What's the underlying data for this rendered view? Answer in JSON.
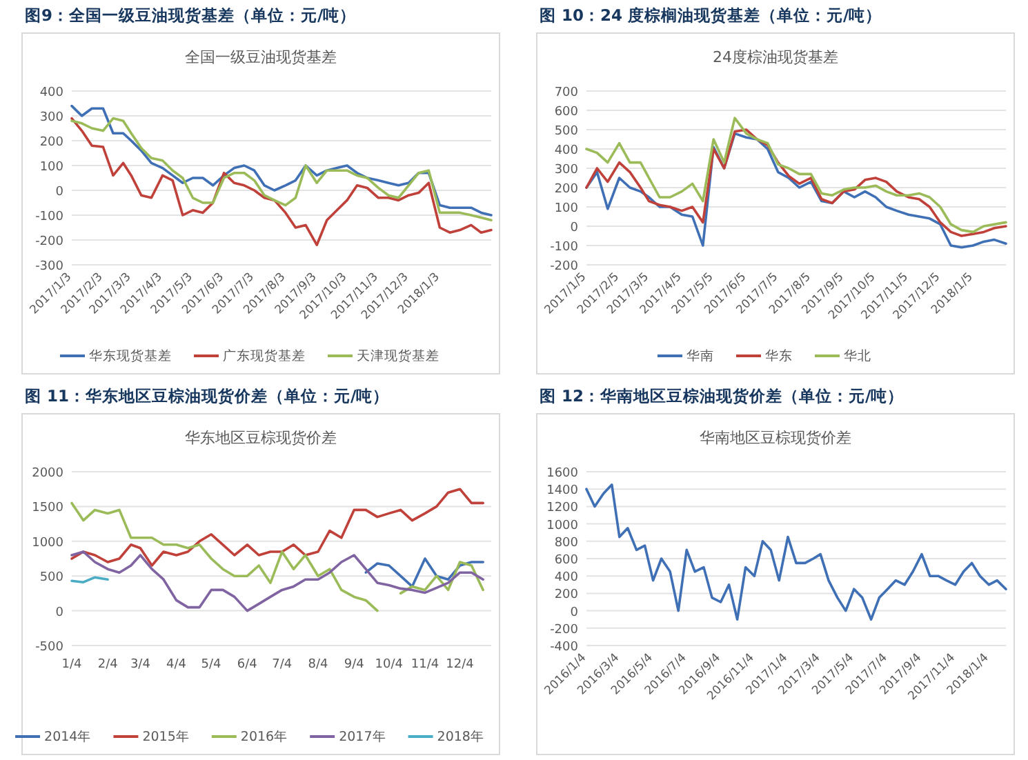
{
  "chart_data": [
    {
      "type": "line",
      "title": "图9：全国一级豆油现货基差（单位：元/吨）",
      "subtitle": "全国一级豆油现货基差",
      "grid": "y",
      "legend": "bottom",
      "x": [
        "2017-01-03",
        "2017-01-13",
        "2017-01-23",
        "2017-02-03",
        "2017-02-13",
        "2017-02-23",
        "2017-03-03",
        "2017-03-13",
        "2017-03-23",
        "2017-04-03",
        "2017-04-13",
        "2017-04-23",
        "2017-05-03",
        "2017-05-13",
        "2017-05-23",
        "2017-06-03",
        "2017-06-13",
        "2017-06-23",
        "2017-07-03",
        "2017-07-13",
        "2017-07-23",
        "2017-08-03",
        "2017-08-13",
        "2017-08-23",
        "2017-09-03",
        "2017-09-13",
        "2017-09-23",
        "2017-10-03",
        "2017-10-13",
        "2017-10-23",
        "2017-11-03",
        "2017-11-13",
        "2017-11-23",
        "2017-12-03",
        "2017-12-13",
        "2017-12-23",
        "2018-01-03",
        "2018-01-13",
        "2018-01-23",
        "2018-02-03",
        "2018-02-13",
        "2018-02-23"
      ],
      "xlim": [
        "2017-01-03",
        "2018-02-23"
      ],
      "xticks": [
        {
          "value": "2017-01-03",
          "label": "2017/1/3"
        },
        {
          "value": "2017-02-03",
          "label": "2017/2/3"
        },
        {
          "value": "2017-03-03",
          "label": "2017/3/3"
        },
        {
          "value": "2017-04-03",
          "label": "2017/4/3"
        },
        {
          "value": "2017-05-03",
          "label": "2017/5/3"
        },
        {
          "value": "2017-06-03",
          "label": "2017/6/3"
        },
        {
          "value": "2017-07-03",
          "label": "2017/7/3"
        },
        {
          "value": "2017-08-03",
          "label": "2017/8/3"
        },
        {
          "value": "2017-09-03",
          "label": "2017/9/3"
        },
        {
          "value": "2017-10-03",
          "label": "2017/10/3"
        },
        {
          "value": "2017-11-03",
          "label": "2017/11/3"
        },
        {
          "value": "2017-12-03",
          "label": "2017/12/3"
        },
        {
          "value": "2018-01-03",
          "label": "2018/1/3"
        }
      ],
      "ylim": [
        -300,
        400
      ],
      "yticks": [
        -300,
        -200,
        -100,
        0,
        100,
        200,
        300,
        400
      ],
      "series": [
        {
          "name": "华东现货基差",
          "color": "#3f6fb5",
          "values": [
            340,
            300,
            330,
            330,
            230,
            230,
            200,
            160,
            110,
            90,
            60,
            30,
            50,
            50,
            20,
            60,
            90,
            100,
            80,
            20,
            0,
            20,
            40,
            100,
            60,
            80,
            90,
            100,
            70,
            50,
            40,
            30,
            20,
            30,
            70,
            70,
            -60,
            -70,
            -70,
            -70,
            -90,
            -100
          ]
        },
        {
          "name": "广东现货基差",
          "color": "#c0403a",
          "values": [
            290,
            240,
            180,
            175,
            60,
            110,
            60,
            -20,
            -30,
            60,
            40,
            -100,
            -80,
            -90,
            -50,
            70,
            30,
            20,
            0,
            -30,
            -40,
            -90,
            -150,
            -140,
            -220,
            -120,
            -80,
            -40,
            20,
            10,
            -30,
            -30,
            -40,
            -20,
            -10,
            30,
            -150,
            -170,
            -160,
            -140,
            -170,
            -160
          ]
        },
        {
          "name": "天津现货基差",
          "color": "#9bbb59",
          "values": [
            280,
            270,
            250,
            240,
            290,
            280,
            230,
            170,
            130,
            120,
            80,
            50,
            -30,
            -50,
            -50,
            50,
            70,
            70,
            40,
            -20,
            -40,
            -60,
            -30,
            100,
            30,
            80,
            80,
            80,
            60,
            50,
            10,
            -20,
            -30,
            20,
            70,
            80,
            -90,
            -90,
            -90,
            -100,
            -110,
            -120
          ]
        }
      ]
    },
    {
      "type": "line",
      "title": "图 10：24 度棕榈油现货基差（单位：元/吨）",
      "subtitle": "24度棕油现货基差",
      "grid": "y",
      "legend": "bottom",
      "x": [
        "2017-01-05",
        "2017-01-15",
        "2017-01-25",
        "2017-02-05",
        "2017-02-15",
        "2017-02-25",
        "2017-03-05",
        "2017-03-15",
        "2017-03-25",
        "2017-04-05",
        "2017-04-15",
        "2017-04-25",
        "2017-05-05",
        "2017-05-15",
        "2017-05-25",
        "2017-06-05",
        "2017-06-15",
        "2017-06-25",
        "2017-07-05",
        "2017-07-15",
        "2017-07-25",
        "2017-08-05",
        "2017-08-15",
        "2017-08-25",
        "2017-09-05",
        "2017-09-15",
        "2017-09-25",
        "2017-10-05",
        "2017-10-15",
        "2017-10-25",
        "2017-11-05",
        "2017-11-15",
        "2017-11-25",
        "2017-12-05",
        "2017-12-15",
        "2017-12-25",
        "2018-01-05",
        "2018-01-15",
        "2018-01-25",
        "2018-02-05"
      ],
      "xlim": [
        "2017-01-05",
        "2018-02-05"
      ],
      "xticks": [
        {
          "value": "2017-01-05",
          "label": "2017/1/5"
        },
        {
          "value": "2017-02-05",
          "label": "2017/2/5"
        },
        {
          "value": "2017-03-05",
          "label": "2017/3/5"
        },
        {
          "value": "2017-04-05",
          "label": "2017/4/5"
        },
        {
          "value": "2017-05-05",
          "label": "2017/5/5"
        },
        {
          "value": "2017-06-05",
          "label": "2017/6/5"
        },
        {
          "value": "2017-07-05",
          "label": "2017/7/5"
        },
        {
          "value": "2017-08-05",
          "label": "2017/8/5"
        },
        {
          "value": "2017-09-05",
          "label": "2017/9/5"
        },
        {
          "value": "2017-10-05",
          "label": "2017/10/5"
        },
        {
          "value": "2017-11-05",
          "label": "2017/11/5"
        },
        {
          "value": "2017-12-05",
          "label": "2017/12/5"
        },
        {
          "value": "2018-01-05",
          "label": "2018/1/5"
        }
      ],
      "ylim": [
        -200,
        700
      ],
      "yticks": [
        -200,
        -100,
        0,
        100,
        200,
        300,
        400,
        500,
        600,
        700
      ],
      "series": [
        {
          "name": "华南",
          "color": "#3f6fb5",
          "values": [
            200,
            280,
            90,
            250,
            200,
            180,
            150,
            100,
            100,
            60,
            50,
            -100,
            410,
            300,
            480,
            460,
            450,
            400,
            280,
            250,
            200,
            230,
            130,
            120,
            180,
            150,
            180,
            150,
            100,
            80,
            60,
            50,
            40,
            10,
            -100,
            -110,
            -100,
            -80,
            -70,
            -90
          ]
        },
        {
          "name": "华东",
          "color": "#c0403a",
          "values": [
            200,
            300,
            230,
            330,
            280,
            200,
            130,
            110,
            100,
            80,
            100,
            20,
            400,
            300,
            490,
            500,
            450,
            420,
            330,
            260,
            220,
            250,
            140,
            120,
            180,
            190,
            240,
            250,
            230,
            180,
            150,
            140,
            100,
            20,
            -30,
            -50,
            -40,
            -30,
            -10,
            0
          ]
        },
        {
          "name": "华北",
          "color": "#9bbb59",
          "values": [
            400,
            380,
            330,
            430,
            330,
            330,
            250,
            150,
            150,
            180,
            220,
            130,
            450,
            330,
            560,
            480,
            450,
            430,
            320,
            300,
            270,
            270,
            170,
            160,
            190,
            200,
            200,
            210,
            180,
            160,
            160,
            170,
            150,
            100,
            10,
            -20,
            -30,
            0,
            10,
            20
          ]
        }
      ]
    },
    {
      "type": "line",
      "title": "图 11：华东地区豆棕油现货价差（单位：元/吨）",
      "subtitle": "华东地区豆棕现货价差",
      "grid": "y",
      "legend": "bottom",
      "x": [
        "--01-04",
        "--01-14",
        "--01-24",
        "--02-04",
        "--02-14",
        "--02-24",
        "--03-04",
        "--03-14",
        "--03-24",
        "--04-04",
        "--04-14",
        "--04-24",
        "--05-04",
        "--05-14",
        "--05-24",
        "--06-04",
        "--06-14",
        "--06-24",
        "--07-04",
        "--07-14",
        "--07-24",
        "--08-04",
        "--08-14",
        "--08-24",
        "--09-04",
        "--09-14",
        "--09-24",
        "--10-04",
        "--10-14",
        "--10-24",
        "--11-04",
        "--11-14",
        "--11-24",
        "--12-04",
        "--12-14",
        "--12-24"
      ],
      "xlim": [
        "--01-04",
        "--12-31"
      ],
      "xticks": [
        {
          "value": "--01-04",
          "label": "1/4"
        },
        {
          "value": "--02-04",
          "label": "2/4"
        },
        {
          "value": "--03-04",
          "label": "3/4"
        },
        {
          "value": "--04-04",
          "label": "4/4"
        },
        {
          "value": "--05-04",
          "label": "5/4"
        },
        {
          "value": "--06-04",
          "label": "6/4"
        },
        {
          "value": "--07-04",
          "label": "7/4"
        },
        {
          "value": "--08-04",
          "label": "8/4"
        },
        {
          "value": "--09-04",
          "label": "9/4"
        },
        {
          "value": "--10-04",
          "label": "10/4"
        },
        {
          "value": "--11-04",
          "label": "11/4"
        },
        {
          "value": "--12-04",
          "label": "12/4"
        }
      ],
      "ylim": [
        -500,
        2000
      ],
      "yticks": [
        -500,
        0,
        500,
        1000,
        1500,
        2000
      ],
      "series": [
        {
          "name": "2014年",
          "color": "#3f6fb5",
          "values": [
            null,
            null,
            null,
            null,
            null,
            null,
            null,
            null,
            null,
            null,
            null,
            null,
            null,
            null,
            null,
            null,
            null,
            null,
            null,
            null,
            null,
            null,
            null,
            null,
            null,
            550,
            680,
            650,
            500,
            350,
            750,
            500,
            450,
            650,
            700,
            700
          ]
        },
        {
          "name": "2015年",
          "color": "#c0403a",
          "values": [
            750,
            850,
            800,
            700,
            750,
            950,
            900,
            650,
            850,
            800,
            850,
            1000,
            1100,
            950,
            800,
            950,
            800,
            850,
            850,
            950,
            800,
            850,
            1150,
            1050,
            1450,
            1450,
            1350,
            1400,
            1450,
            1300,
            1400,
            1500,
            1700,
            1750,
            1550,
            1550
          ]
        },
        {
          "name": "2016年",
          "color": "#9bbb59",
          "values": [
            1550,
            1300,
            1450,
            1400,
            1450,
            1050,
            1050,
            1050,
            950,
            950,
            900,
            950,
            750,
            600,
            500,
            500,
            650,
            400,
            850,
            600,
            800,
            500,
            600,
            300,
            200,
            150,
            0,
            null,
            250,
            350,
            300,
            500,
            300,
            700,
            650,
            300
          ]
        },
        {
          "name": "2017年",
          "color": "#8064a2",
          "values": [
            800,
            850,
            700,
            600,
            550,
            650,
            800,
            600,
            450,
            150,
            50,
            50,
            300,
            300,
            200,
            0,
            100,
            200,
            300,
            350,
            450,
            450,
            550,
            700,
            800,
            600,
            400,
            370,
            320,
            300,
            260,
            330,
            400,
            550,
            550,
            450
          ]
        },
        {
          "name": "2018年",
          "color": "#4bacc6",
          "values": [
            430,
            410,
            480,
            450,
            null,
            null,
            null,
            null,
            null,
            null,
            null,
            null,
            null,
            null,
            null,
            null,
            null,
            null,
            null,
            null,
            null,
            null,
            null,
            null,
            null,
            null,
            null,
            null,
            null,
            null,
            null,
            null,
            null,
            null,
            null,
            null
          ]
        }
      ]
    },
    {
      "type": "line",
      "title": "图 12：华南地区豆棕油现货价差（单位：元/吨）",
      "subtitle": "华南地区豆棕现货价差",
      "grid": "y",
      "x": [
        "2016-01-04",
        "2016-01-19",
        "2016-02-04",
        "2016-02-19",
        "2016-03-04",
        "2016-03-19",
        "2016-04-04",
        "2016-04-19",
        "2016-05-04",
        "2016-05-19",
        "2016-06-04",
        "2016-06-19",
        "2016-07-04",
        "2016-07-19",
        "2016-08-04",
        "2016-08-19",
        "2016-09-04",
        "2016-09-19",
        "2016-10-04",
        "2016-10-19",
        "2016-11-04",
        "2016-11-19",
        "2016-12-04",
        "2016-12-19",
        "2017-01-04",
        "2017-01-19",
        "2017-02-04",
        "2017-02-19",
        "2017-03-04",
        "2017-03-19",
        "2017-04-04",
        "2017-04-19",
        "2017-05-04",
        "2017-05-19",
        "2017-06-04",
        "2017-06-19",
        "2017-07-04",
        "2017-07-19",
        "2017-08-04",
        "2017-08-19",
        "2017-09-04",
        "2017-09-19",
        "2017-10-04",
        "2017-10-19",
        "2017-11-04",
        "2017-11-19",
        "2017-12-04",
        "2017-12-19",
        "2018-01-04",
        "2018-01-19",
        "2018-02-04"
      ],
      "xlim": [
        "2016-01-04",
        "2018-02-04"
      ],
      "xticks": [
        {
          "value": "2016-01-04",
          "label": "2016/1/4"
        },
        {
          "value": "2016-03-04",
          "label": "2016/3/4"
        },
        {
          "value": "2016-05-04",
          "label": "2016/5/4"
        },
        {
          "value": "2016-07-04",
          "label": "2016/7/4"
        },
        {
          "value": "2016-09-04",
          "label": "2016/9/4"
        },
        {
          "value": "2016-11-04",
          "label": "2016/11/4"
        },
        {
          "value": "2017-01-04",
          "label": "2017/1/4"
        },
        {
          "value": "2017-03-04",
          "label": "2017/3/4"
        },
        {
          "value": "2017-05-04",
          "label": "2017/5/4"
        },
        {
          "value": "2017-07-04",
          "label": "2017/7/4"
        },
        {
          "value": "2017-09-04",
          "label": "2017/9/4"
        },
        {
          "value": "2017-11-04",
          "label": "2017/11/4"
        },
        {
          "value": "2018-01-04",
          "label": "2018/1/4"
        }
      ],
      "ylim": [
        -400,
        1600
      ],
      "yticks": [
        -400,
        -200,
        0,
        200,
        400,
        600,
        800,
        1000,
        1200,
        1400,
        1600
      ],
      "series": [
        {
          "color": "#3f6fb5",
          "values": [
            1400,
            1200,
            1350,
            1450,
            850,
            950,
            700,
            750,
            350,
            600,
            450,
            0,
            700,
            450,
            500,
            150,
            100,
            300,
            -100,
            500,
            400,
            800,
            700,
            350,
            850,
            550,
            550,
            600,
            650,
            350,
            150,
            0,
            250,
            150,
            -100,
            150,
            250,
            350,
            300,
            450,
            650,
            400,
            400,
            350,
            300,
            450,
            550,
            400,
            300,
            350,
            250
          ]
        }
      ]
    }
  ]
}
